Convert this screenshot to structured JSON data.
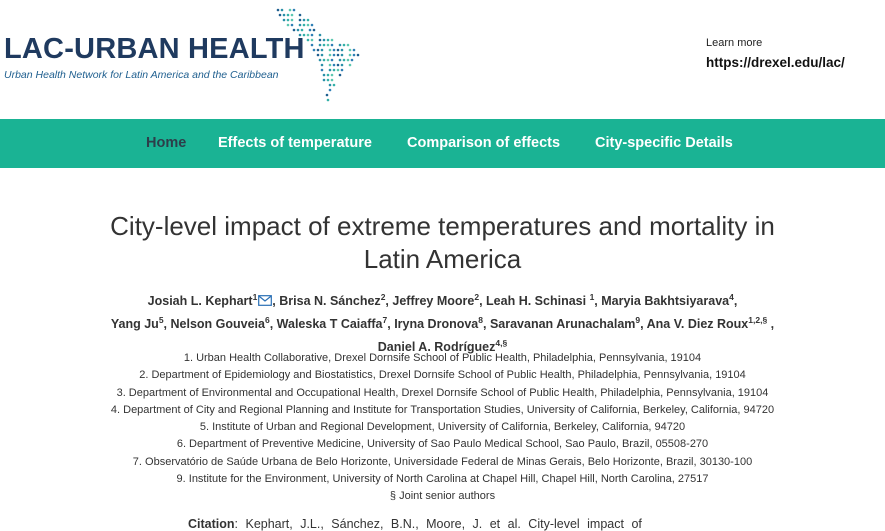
{
  "header": {
    "logo_title": "LAC-URBAN HEALTH",
    "logo_subtitle": "Urban Health Network for Latin America and the Caribbean",
    "learn_more_label": "Learn more",
    "learn_more_link": "https://drexel.edu/lac/"
  },
  "nav": {
    "color": "#1ab394",
    "items": [
      {
        "label": "Home",
        "active": true
      },
      {
        "label": "Effects of temperature"
      },
      {
        "label": "Comparison of effects"
      },
      {
        "label": "City-specific Details"
      }
    ]
  },
  "page": {
    "title_line1": "City-level impact of extreme temperatures and mortality in",
    "title_line2": "Latin America"
  },
  "authors": [
    {
      "name": "Josiah L. Kephart",
      "sup": "1"
    },
    {
      "name": "Brisa N. Sánchez",
      "sup": "2"
    },
    {
      "name": "Jeffrey Moore",
      "sup": "2"
    },
    {
      "name": "Leah H. Schinasi",
      "sup": "1"
    },
    {
      "name": "Maryia Bakhtsiyarava",
      "sup": "4"
    },
    {
      "name": "Yang Ju",
      "sup": "5"
    },
    {
      "name": "Nelson Gouveia",
      "sup": "6"
    },
    {
      "name": "Waleska T Caiaffa",
      "sup": "7"
    },
    {
      "name": "Iryna Dronova",
      "sup": "8"
    },
    {
      "name": "Saravanan Arunachalam",
      "sup": "9"
    },
    {
      "name": "Ana V. Diez Roux",
      "sup": "1,2,§"
    },
    {
      "name": "Daniel A. Rodríguez",
      "sup": "4,§"
    }
  ],
  "affiliations": [
    "1. Urban Health Collaborative, Drexel Dornsife School of Public Health, Philadelphia, Pennsylvania, 19104",
    "2. Department of Epidemiology and Biostatistics, Drexel Dornsife School of Public Health, Philadelphia, Pennsylvania, 19104",
    "3. Department of Environmental and Occupational Health, Drexel Dornsife School of Public Health, Philadelphia, Pennsylvania, 19104",
    "4. Department of City and Regional Planning and Institute for Transportation Studies, University of California, Berkeley, California, 94720",
    "5. Institute of Urban and Regional Development, University of California, Berkeley, California, 94720",
    "6. Department of Preventive Medicine, University of Sao Paulo Medical School, Sao Paulo, Brazil, 05508-270",
    "7. Observatório de Saúde Urbana de Belo Horizonte, Universidade Federal de Minas Gerais, Belo Horizonte, Brazil, 30130-100",
    "9. Institute for the Environment, University of North Carolina at Chapel Hill, Chapel Hill, North Carolina, 27517",
    "§ Joint senior authors"
  ],
  "citation": {
    "label": "Citation",
    "text": ": Kephart, J.L., Sánchez, B.N., Moore, J. et al. City-level impact of"
  }
}
